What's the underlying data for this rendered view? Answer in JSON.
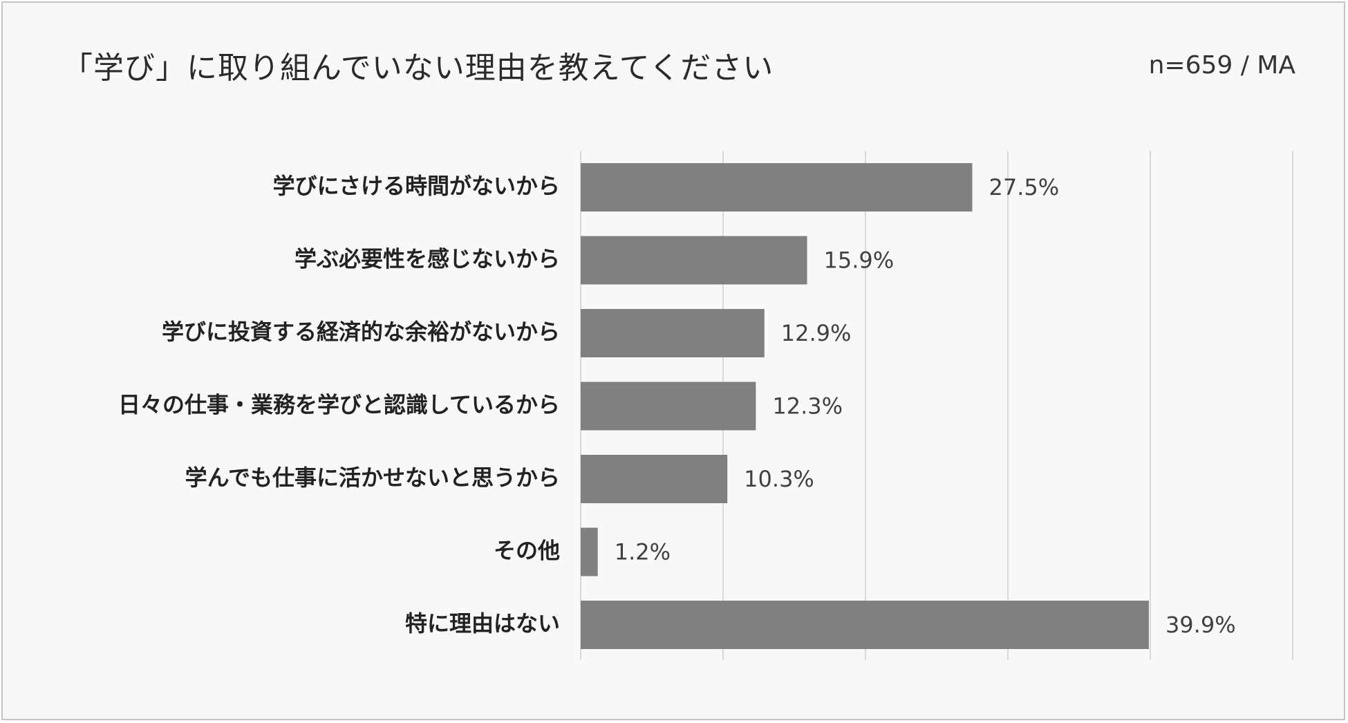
{
  "header": {
    "title": "「学び」に取り組んでいない理由を教えてください",
    "sample_note": "n=659 / MA"
  },
  "chart_data": {
    "type": "bar",
    "orientation": "horizontal",
    "title": "「学び」に取り組んでいない理由を教えてください",
    "xlabel": "",
    "ylabel": "",
    "categories": [
      "学びにさける時間がないから",
      "学ぶ必要性を感じないから",
      "学びに投資する経済的な余裕がないから",
      "日々の仕事・業務を学びと認識しているから",
      "学んでも仕事に活かせないと思うから",
      "その他",
      "特に理由はない"
    ],
    "values": [
      27.5,
      15.9,
      12.9,
      12.3,
      10.3,
      1.2,
      39.9
    ],
    "value_labels": [
      "27.5%",
      "15.9%",
      "12.9%",
      "12.3%",
      "10.3%",
      "1.2%",
      "39.9%"
    ],
    "xlim": [
      0,
      50
    ],
    "unit": "%",
    "grid": true,
    "legend": "none",
    "colors": {
      "bar": "#808080",
      "grid": "#d9d9d9",
      "background": "#f8f8f8"
    }
  }
}
